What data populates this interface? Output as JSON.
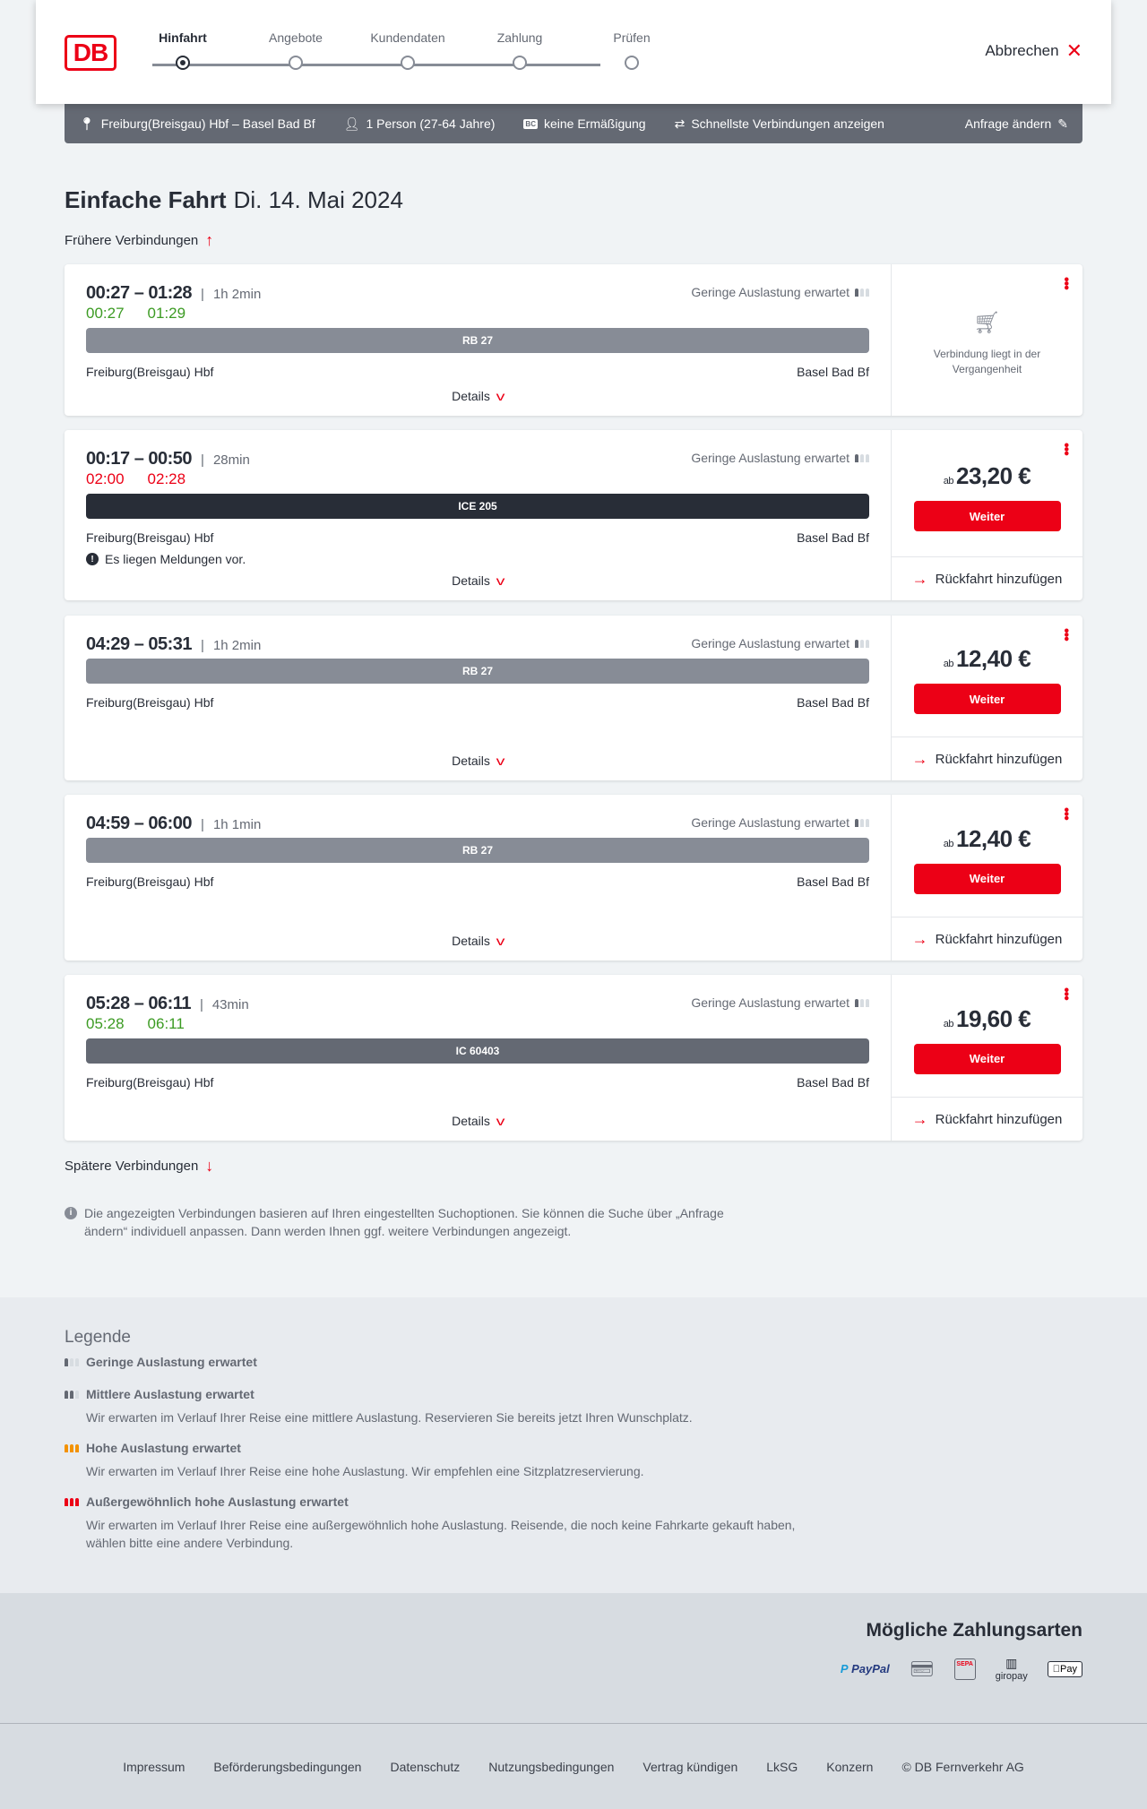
{
  "header": {
    "logo": "DB",
    "steps": [
      "Hinfahrt",
      "Angebote",
      "Kundendaten",
      "Zahlung",
      "Prüfen"
    ],
    "active_step": 0,
    "cancel": "Abbrechen"
  },
  "search": {
    "route": "Freiburg(Breisgau) Hbf – Basel Bad Bf",
    "passengers": "1 Person (27-64 Jahre)",
    "discount_badge": "BC",
    "discount": "keine Ermäßigung",
    "fastest": "Schnellste Verbindungen anzeigen",
    "change": "Anfrage ändern"
  },
  "title": {
    "type": "Einfache Fahrt",
    "date": "Di. 14. Mai 2024"
  },
  "earlier": "Frühere Verbindungen",
  "later": "Spätere Verbindungen",
  "labels": {
    "details": "Details",
    "continue": "Weiter",
    "return": "Rückfahrt hinzufügen",
    "from_prefix": "ab",
    "past": "Verbindung liegt in der Vergangenheit"
  },
  "connections": [
    {
      "times": "00:27 – 01:28",
      "duration": "1h 2min",
      "load": "Geringe Auslastung erwartet",
      "realtime": [
        "00:27",
        "01:29"
      ],
      "realtime_color": "#3c9b23",
      "train": "RB 27",
      "train_color": "#878c96",
      "from": "Freiburg(Breisgau) Hbf",
      "to": "Basel Bad Bf",
      "past": true
    },
    {
      "times": "00:17 – 00:50",
      "duration": "28min",
      "load": "Geringe Auslastung erwartet",
      "realtime": [
        "02:00",
        "02:28"
      ],
      "realtime_color": "#ec0016",
      "train": "ICE 205",
      "train_color": "#282d37",
      "from": "Freiburg(Breisgau) Hbf",
      "to": "Basel Bad Bf",
      "message": "Es liegen Meldungen vor.",
      "price": "23,20 €"
    },
    {
      "times": "04:29 – 05:31",
      "duration": "1h 2min",
      "load": "Geringe Auslastung erwartet",
      "train": "RB 27",
      "train_color": "#878c96",
      "from": "Freiburg(Breisgau) Hbf",
      "to": "Basel Bad Bf",
      "price": "12,40 €"
    },
    {
      "times": "04:59 – 06:00",
      "duration": "1h 1min",
      "load": "Geringe Auslastung erwartet",
      "train": "RB 27",
      "train_color": "#878c96",
      "from": "Freiburg(Breisgau) Hbf",
      "to": "Basel Bad Bf",
      "price": "12,40 €"
    },
    {
      "times": "05:28 – 06:11",
      "duration": "43min",
      "load": "Geringe Auslastung erwartet",
      "realtime": [
        "05:28",
        "06:11"
      ],
      "realtime_color": "#3c9b23",
      "train": "IC 60403",
      "train_color": "#646973",
      "from": "Freiburg(Breisgau) Hbf",
      "to": "Basel Bad Bf",
      "price": "19,60 €"
    }
  ],
  "info_note": "Die angezeigten Verbindungen basieren auf Ihren eingestellten Suchoptionen. Sie können die Suche über „Anfrage ändern“ individuell anpassen. Dann werden Ihnen ggf. weitere Verbindungen angezeigt.",
  "legend": {
    "title": "Legende",
    "items": [
      {
        "title": "Geringe Auslastung erwartet",
        "text": "",
        "level": 1,
        "color": "#646973"
      },
      {
        "title": "Mittlere Auslastung erwartet",
        "text": "Wir erwarten im Verlauf Ihrer Reise eine mittlere Auslastung. Reservieren Sie bereits jetzt Ihren Wunschplatz.",
        "level": 2,
        "color": "#646973"
      },
      {
        "title": "Hohe Auslastung erwartet",
        "text": "Wir erwarten im Verlauf Ihrer Reise eine hohe Auslastung. Wir empfehlen eine Sitzplatzreservierung.",
        "level": 3,
        "color": "#f39200"
      },
      {
        "title": "Außergewöhnlich hohe Auslastung erwartet",
        "text": "Wir erwarten im Verlauf Ihrer Reise eine außergewöhnlich hohe Auslastung. Reisende, die noch keine Fahrkarte gekauft haben, wählen bitte eine andere Verbindung.",
        "level": 4,
        "color": "#ec0016"
      }
    ]
  },
  "payment": {
    "title": "Mögliche Zahlungsarten",
    "methods": [
      "PayPal",
      "Kreditkarte",
      "SEPA",
      "giropay",
      "Apple Pay"
    ]
  },
  "footer": [
    "Impressum",
    "Beförderungsbedingungen",
    "Datenschutz",
    "Nutzungsbedingungen",
    "Vertrag kündigen",
    "LkSG",
    "Konzern",
    "© DB Fernverkehr AG"
  ],
  "colors": {
    "accent": "#ec0016",
    "text": "#282d37",
    "infobar": "#646973"
  }
}
